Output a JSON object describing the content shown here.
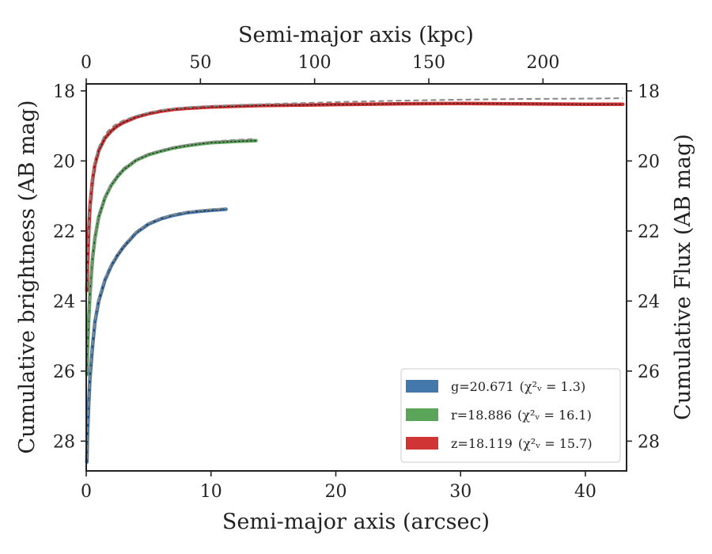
{
  "chart_data": {
    "type": "line",
    "xlabel": "Semi-major axis (arcsec)",
    "ylabel": "Cumulative brightness (AB mag)",
    "top_xlabel": "Semi-major axis (kpc)",
    "right_ylabel": "Cumulative Flux (AB mag)",
    "xlim": [
      0,
      43.3
    ],
    "ylim": [
      28.85,
      17.8
    ],
    "y_inverted": true,
    "top_xlim": [
      0,
      236.6
    ],
    "x_ticks": [
      0,
      10,
      20,
      30,
      40
    ],
    "x_tick_labels": [
      "0",
      "10",
      "20",
      "30",
      "40"
    ],
    "top_x_ticks": [
      0,
      50,
      100,
      150,
      200
    ],
    "top_x_tick_labels": [
      "0",
      "50",
      "100",
      "150",
      "200"
    ],
    "y_ticks": [
      18,
      20,
      22,
      24,
      26,
      28
    ],
    "y_tick_labels": [
      "18",
      "20",
      "22",
      "24",
      "26",
      "28"
    ],
    "grid": false,
    "legend_position": "bottom-right",
    "legend": [
      {
        "color": "#4477aa",
        "label": "g=20.671",
        "chi_label": "(χ²ᵥ = 1.3)"
      },
      {
        "color": "#5aa55a",
        "label": "r=18.886",
        "chi_label": "(χ²ᵥ = 16.1)"
      },
      {
        "color": "#d03434",
        "label": "z=18.119",
        "chi_label": "(χ²ᵥ = 15.7)"
      }
    ],
    "series": [
      {
        "name": "g",
        "color": "#4477aa",
        "x": [
          0.05,
          0.1,
          0.2,
          0.3,
          0.5,
          0.7,
          1.0,
          1.5,
          2.0,
          2.5,
          3.0,
          4.0,
          5.0,
          6.0,
          7.0,
          8.0,
          9.0,
          10.0,
          11.2
        ],
        "y": [
          28.6,
          27.8,
          26.9,
          26.2,
          25.3,
          24.6,
          24.0,
          23.4,
          23.0,
          22.7,
          22.45,
          22.05,
          21.8,
          21.65,
          21.55,
          21.48,
          21.44,
          21.41,
          21.38
        ]
      },
      {
        "name": "r",
        "color": "#5aa55a",
        "x": [
          0.05,
          0.1,
          0.2,
          0.3,
          0.5,
          0.7,
          1.0,
          1.5,
          2.0,
          2.5,
          3.0,
          4.0,
          5.0,
          6.0,
          7.0,
          8.0,
          9.0,
          10.0,
          11.0,
          12.0,
          13.6
        ],
        "y": [
          26.1,
          25.4,
          24.5,
          23.8,
          22.8,
          22.2,
          21.6,
          21.05,
          20.7,
          20.45,
          20.25,
          19.98,
          19.82,
          19.72,
          19.63,
          19.57,
          19.52,
          19.48,
          19.46,
          19.44,
          19.42
        ]
      },
      {
        "name": "z",
        "color": "#d03434",
        "x": [
          0.05,
          0.1,
          0.2,
          0.3,
          0.5,
          0.7,
          1.0,
          1.5,
          2.0,
          2.5,
          3.0,
          4.0,
          5.0,
          6.0,
          7.0,
          8.0,
          10.0,
          12.0,
          14.0,
          16.0,
          18.0,
          20.0,
          25.0,
          30.0,
          35.0,
          40.0,
          43.0
        ],
        "y": [
          23.7,
          23.0,
          22.0,
          21.3,
          20.55,
          20.1,
          19.7,
          19.35,
          19.15,
          19.0,
          18.9,
          18.75,
          18.65,
          18.58,
          18.53,
          18.5,
          18.46,
          18.44,
          18.42,
          18.41,
          18.4,
          18.39,
          18.37,
          18.36,
          18.37,
          18.38,
          18.38
        ]
      },
      {
        "name": "g-model",
        "color": "#888888",
        "dashed": true,
        "x": [
          0.05,
          0.1,
          0.2,
          0.3,
          0.5,
          0.7,
          1.0,
          1.5,
          2.0,
          2.5,
          3.0,
          4.0,
          5.0,
          6.0,
          7.0,
          8.0,
          9.0,
          10.0,
          11.2
        ],
        "y": [
          28.5,
          27.7,
          26.8,
          26.1,
          25.2,
          24.55,
          23.95,
          23.35,
          22.95,
          22.65,
          22.4,
          22.02,
          21.78,
          21.63,
          21.53,
          21.46,
          21.41,
          21.38,
          21.36
        ]
      },
      {
        "name": "r-model",
        "color": "#888888",
        "dashed": true,
        "x": [
          0.05,
          0.1,
          0.2,
          0.3,
          0.5,
          0.7,
          1.0,
          1.5,
          2.0,
          2.5,
          3.0,
          4.0,
          5.0,
          6.0,
          7.0,
          8.0,
          9.0,
          10.0,
          11.0,
          12.0,
          13.6
        ],
        "y": [
          26.0,
          25.3,
          24.4,
          23.7,
          22.7,
          22.1,
          21.5,
          21.0,
          20.65,
          20.4,
          20.2,
          19.95,
          19.79,
          19.69,
          19.6,
          19.54,
          19.49,
          19.45,
          19.42,
          19.4,
          19.37
        ]
      },
      {
        "name": "z-model",
        "color": "#888888",
        "dashed": true,
        "x": [
          0.05,
          0.1,
          0.2,
          0.3,
          0.5,
          0.7,
          1.0,
          1.5,
          2.0,
          2.5,
          3.0,
          4.0,
          5.0,
          6.0,
          7.0,
          8.0,
          10.0,
          12.0,
          14.0,
          16.0,
          18.0,
          20.0,
          25.0,
          30.0,
          35.0,
          40.0,
          43.0
        ],
        "y": [
          23.6,
          22.9,
          21.9,
          21.2,
          20.45,
          20.0,
          19.6,
          19.25,
          19.05,
          18.93,
          18.84,
          18.71,
          18.62,
          18.55,
          18.5,
          18.47,
          18.43,
          18.4,
          18.38,
          18.36,
          18.34,
          18.32,
          18.28,
          18.25,
          18.23,
          18.22,
          18.21
        ]
      }
    ]
  }
}
